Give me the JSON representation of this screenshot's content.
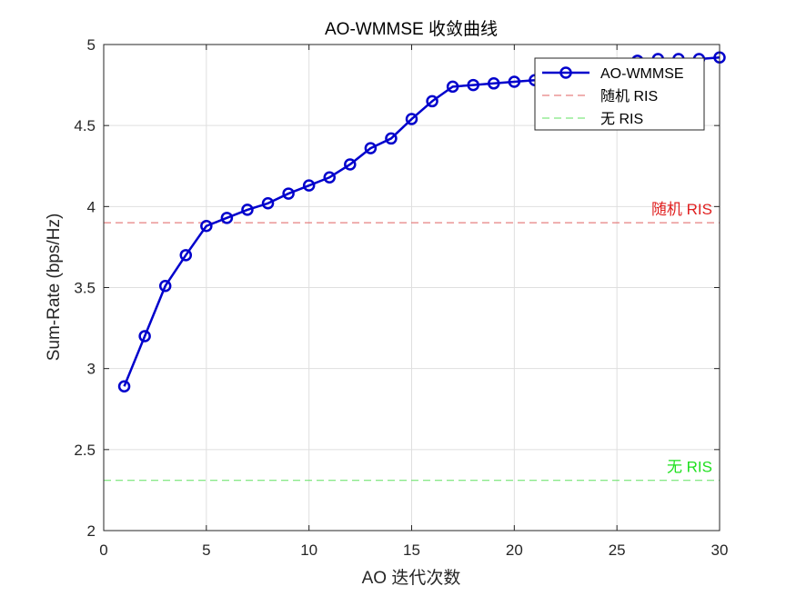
{
  "chart_data": {
    "type": "line",
    "title": "AO-WMMSE 收敛曲线",
    "xlabel": "AO 迭代次数",
    "ylabel": "Sum-Rate (bps/Hz)",
    "xlim": [
      0,
      30
    ],
    "ylim": [
      2,
      5
    ],
    "xticks": [
      0,
      5,
      10,
      15,
      20,
      25,
      30
    ],
    "yticks": [
      2,
      2.5,
      3,
      3.5,
      4,
      4.5,
      5
    ],
    "xtick_labels": [
      "0",
      "5",
      "10",
      "15",
      "20",
      "25",
      "30"
    ],
    "ytick_labels": [
      "2",
      "2.5",
      "3",
      "3.5",
      "4",
      "4.5",
      "5"
    ],
    "grid": true,
    "legend_position": "top-right",
    "series": [
      {
        "name": "AO-WMMSE",
        "color": "#0000cc",
        "style": "solid-line-circle-markers",
        "x": [
          1,
          2,
          3,
          4,
          5,
          6,
          7,
          8,
          9,
          10,
          11,
          12,
          13,
          14,
          15,
          16,
          17,
          18,
          19,
          20,
          21,
          22,
          23,
          24,
          25,
          26,
          27,
          28,
          29,
          30
        ],
        "y": [
          2.89,
          3.2,
          3.51,
          3.7,
          3.88,
          3.93,
          3.98,
          4.02,
          4.08,
          4.13,
          4.18,
          4.26,
          4.36,
          4.42,
          4.54,
          4.65,
          4.74,
          4.75,
          4.76,
          4.77,
          4.78,
          4.8,
          4.83,
          4.85,
          4.88,
          4.9,
          4.91,
          4.91,
          4.91,
          4.92
        ]
      }
    ],
    "reference_lines": [
      {
        "name": "随机 RIS",
        "y": 3.9,
        "color": "#e06060",
        "label_color": "#e02020",
        "style": "dashed"
      },
      {
        "name": "无 RIS",
        "y": 2.31,
        "color": "#60e060",
        "label_color": "#20e020",
        "style": "dashed"
      }
    ],
    "annotations": [
      {
        "text": "随机 RIS",
        "color": "#e02020",
        "y": 3.9
      },
      {
        "text": "无 RIS",
        "color": "#20e020",
        "y": 2.31
      }
    ]
  }
}
